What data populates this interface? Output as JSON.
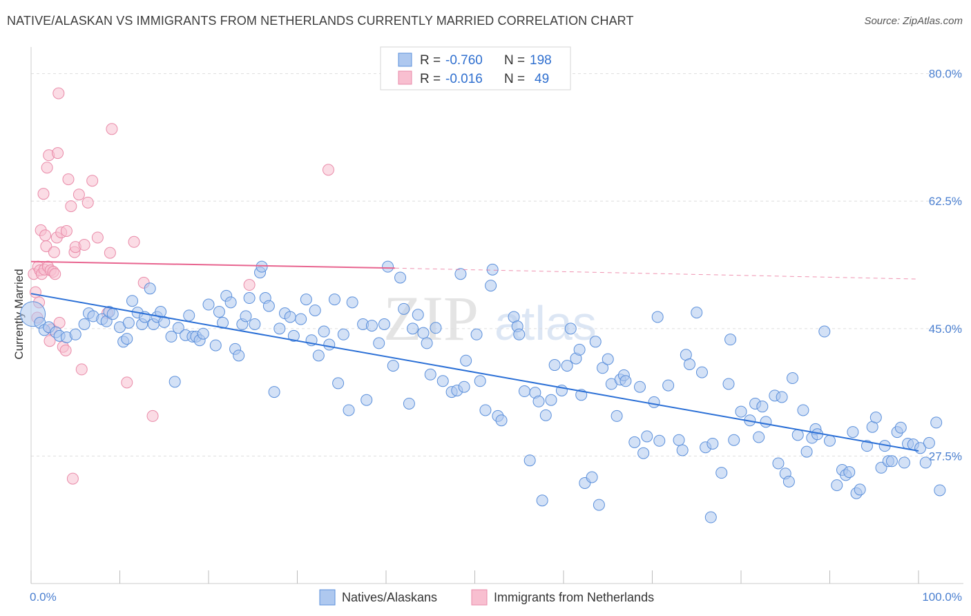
{
  "title": "NATIVE/ALASKAN VS IMMIGRANTS FROM NETHERLANDS CURRENTLY MARRIED CORRELATION CHART",
  "source": "Source: ZipAtlas.com",
  "watermark": {
    "zip": "ZIP",
    "atlas": "atlas"
  },
  "colors": {
    "blue_fill": "#aec8ef",
    "blue_stroke": "#5a8fdb",
    "blue_line": "#2a6fd6",
    "pink_fill": "#f8bfd0",
    "pink_stroke": "#e98aa8",
    "pink_line": "#e8648f",
    "tick_text": "#4a7fd0",
    "grid": "#dddddd"
  },
  "stats": {
    "blue": {
      "r_label": "R =",
      "r_value": "-0.760",
      "n_label": "N =",
      "n_value": "198"
    },
    "pink": {
      "r_label": "R =",
      "r_value": "-0.016",
      "n_label": "N =",
      "n_value": "49"
    }
  },
  "chart_data": {
    "type": "scatter",
    "title": "NATIVE/ALASKAN VS IMMIGRANTS FROM NETHERLANDS CURRENTLY MARRIED CORRELATION CHART",
    "xlabel": "",
    "ylabel": "Currently Married",
    "xlim": [
      0,
      100
    ],
    "ylim": [
      10,
      83
    ],
    "x_tick_labels": [
      "0.0%",
      "100.0%"
    ],
    "y_ticks": [
      27.5,
      45.0,
      62.5,
      80.0
    ],
    "y_tick_labels": [
      "27.5%",
      "45.0%",
      "62.5%",
      "80.0%"
    ],
    "legend": [
      "Natives/Alaskans",
      "Immigrants from Netherlands"
    ],
    "series": [
      {
        "name": "Natives/Alaskans",
        "trend": {
          "x0": 0,
          "y0": 49.8,
          "x1": 100,
          "y1": 28.2
        },
        "points": [
          [
            0.2,
            47.0
          ],
          [
            1,
            45.8
          ],
          [
            1.5,
            44.8
          ],
          [
            2,
            45.2
          ],
          [
            2.8,
            44.5
          ],
          [
            3.2,
            44.0
          ],
          [
            4,
            43.8
          ],
          [
            5,
            44.2
          ],
          [
            6,
            45.6
          ],
          [
            6.5,
            47.1
          ],
          [
            7,
            46.7
          ],
          [
            8,
            46.3
          ],
          [
            8.5,
            46.0
          ],
          [
            8.8,
            47.3
          ],
          [
            9.2,
            47.0
          ],
          [
            10,
            45.2
          ],
          [
            10.4,
            43.2
          ],
          [
            10.8,
            43.6
          ],
          [
            11,
            45.8
          ],
          [
            11.4,
            48.8
          ],
          [
            12,
            47.2
          ],
          [
            12.5,
            45.6
          ],
          [
            12.8,
            46.6
          ],
          [
            13.4,
            50.5
          ],
          [
            13.8,
            45.6
          ],
          [
            14.2,
            46.6
          ],
          [
            14.6,
            47.3
          ],
          [
            15,
            45.9
          ],
          [
            15.8,
            43.9
          ],
          [
            16.2,
            37.7
          ],
          [
            16.6,
            45.1
          ],
          [
            17.4,
            44.1
          ],
          [
            17.8,
            46.8
          ],
          [
            18.2,
            43.9
          ],
          [
            18.6,
            43.9
          ],
          [
            19,
            43.4
          ],
          [
            19.4,
            44.3
          ],
          [
            20,
            48.3
          ],
          [
            20.8,
            42.7
          ],
          [
            21.2,
            47.3
          ],
          [
            21.6,
            45.8
          ],
          [
            22,
            49.5
          ],
          [
            22.5,
            48.6
          ],
          [
            23,
            42.2
          ],
          [
            23.4,
            41.3
          ],
          [
            23.8,
            45.6
          ],
          [
            24.2,
            46.7
          ],
          [
            24.6,
            49.2
          ],
          [
            25.2,
            45.6
          ],
          [
            25.8,
            52.7
          ],
          [
            26,
            53.5
          ],
          [
            26.4,
            49.2
          ],
          [
            26.8,
            48.1
          ],
          [
            27.4,
            36.3
          ],
          [
            28,
            45.0
          ],
          [
            28.6,
            47.1
          ],
          [
            29.2,
            46.6
          ],
          [
            29.6,
            44.0
          ],
          [
            30.4,
            46.3
          ],
          [
            31,
            49.0
          ],
          [
            31.6,
            43.4
          ],
          [
            32,
            47.5
          ],
          [
            32.4,
            41.3
          ],
          [
            33,
            44.6
          ],
          [
            33.6,
            42.8
          ],
          [
            34.2,
            49.0
          ],
          [
            34.6,
            37.5
          ],
          [
            35.2,
            44.2
          ],
          [
            35.8,
            33.8
          ],
          [
            36.2,
            48.6
          ],
          [
            37.4,
            45.6
          ],
          [
            37.8,
            35.2
          ],
          [
            38.4,
            45.4
          ],
          [
            39.2,
            43.0
          ],
          [
            39.8,
            45.6
          ],
          [
            40.2,
            53.5
          ],
          [
            40.8,
            39.9
          ],
          [
            41.6,
            52.0
          ],
          [
            42,
            47.7
          ],
          [
            42.6,
            34.7
          ],
          [
            43,
            45.0
          ],
          [
            43.6,
            46.9
          ],
          [
            44.2,
            44.4
          ],
          [
            44.6,
            43.0
          ],
          [
            45,
            38.7
          ],
          [
            45.6,
            45.1
          ],
          [
            46.4,
            37.8
          ],
          [
            47.4,
            36.3
          ],
          [
            48,
            36.5
          ],
          [
            48.4,
            52.5
          ],
          [
            48.8,
            37.0
          ],
          [
            49,
            40.6
          ],
          [
            50.2,
            44.2
          ],
          [
            50.6,
            37.8
          ],
          [
            51.2,
            33.8
          ],
          [
            51.8,
            50.9
          ],
          [
            52,
            53.1
          ],
          [
            52.6,
            33.0
          ],
          [
            53,
            32.4
          ],
          [
            54.4,
            46.6
          ],
          [
            54.8,
            45.3
          ],
          [
            55,
            44.2
          ],
          [
            55.6,
            36.4
          ],
          [
            56.2,
            26.9
          ],
          [
            56.8,
            36.2
          ],
          [
            57.2,
            35.0
          ],
          [
            57.6,
            21.4
          ],
          [
            58,
            33.1
          ],
          [
            58.6,
            35.2
          ],
          [
            59,
            40.0
          ],
          [
            59.8,
            36.5
          ],
          [
            60.4,
            39.9
          ],
          [
            60.8,
            45.0
          ],
          [
            61.4,
            40.9
          ],
          [
            61.8,
            42.1
          ],
          [
            62,
            35.9
          ],
          [
            62.4,
            23.8
          ],
          [
            63.2,
            24.6
          ],
          [
            63.6,
            43.2
          ],
          [
            64,
            20.8
          ],
          [
            64.4,
            39.6
          ],
          [
            65,
            40.8
          ],
          [
            65.4,
            37.4
          ],
          [
            66,
            33.0
          ],
          [
            66.4,
            38.0
          ],
          [
            66.8,
            38.6
          ],
          [
            67,
            37.8
          ],
          [
            68,
            29.4
          ],
          [
            68.6,
            37.0
          ],
          [
            69,
            27.9
          ],
          [
            69.4,
            30.2
          ],
          [
            70.2,
            34.9
          ],
          [
            70.6,
            46.6
          ],
          [
            70.8,
            29.6
          ],
          [
            71.8,
            37.2
          ],
          [
            73,
            29.7
          ],
          [
            73.4,
            28.3
          ],
          [
            73.8,
            41.4
          ],
          [
            74.2,
            40.1
          ],
          [
            75,
            47.2
          ],
          [
            75.6,
            39.0
          ],
          [
            76,
            28.7
          ],
          [
            76.6,
            19.1
          ],
          [
            76.8,
            29.2
          ],
          [
            77.8,
            25.2
          ],
          [
            78.6,
            37.4
          ],
          [
            78.8,
            43.5
          ],
          [
            79.2,
            29.7
          ],
          [
            80,
            33.6
          ],
          [
            81,
            32.4
          ],
          [
            81.6,
            34.7
          ],
          [
            82,
            30.1
          ],
          [
            82.4,
            34.3
          ],
          [
            82.8,
            32.2
          ],
          [
            83.8,
            35.8
          ],
          [
            84.2,
            26.5
          ],
          [
            84.6,
            35.6
          ],
          [
            85,
            25.1
          ],
          [
            85.4,
            24.0
          ],
          [
            85.8,
            38.2
          ],
          [
            86.4,
            30.4
          ],
          [
            87,
            33.8
          ],
          [
            87.4,
            28.1
          ],
          [
            88,
            30.0
          ],
          [
            88.4,
            31.2
          ],
          [
            88.6,
            30.5
          ],
          [
            89.4,
            44.6
          ],
          [
            90,
            29.6
          ],
          [
            90.8,
            23.5
          ],
          [
            91.4,
            25.6
          ],
          [
            91.8,
            24.9
          ],
          [
            92.2,
            25.3
          ],
          [
            92.6,
            30.8
          ],
          [
            93,
            22.4
          ],
          [
            93.4,
            22.9
          ],
          [
            94.2,
            28.9
          ],
          [
            94.8,
            31.5
          ],
          [
            95.2,
            32.8
          ],
          [
            95.8,
            25.9
          ],
          [
            96.2,
            28.9
          ],
          [
            96.6,
            26.8
          ],
          [
            97,
            26.8
          ],
          [
            97.6,
            30.8
          ],
          [
            98,
            31.4
          ],
          [
            98.4,
            26.6
          ],
          [
            98.8,
            29.2
          ],
          [
            99.4,
            29.1
          ],
          [
            100.2,
            28.6
          ],
          [
            100.8,
            26.6
          ],
          [
            101.2,
            29.3
          ],
          [
            102,
            32.1
          ],
          [
            102.4,
            22.8
          ]
        ]
      },
      {
        "name": "Immigrants from Netherlands",
        "trend": {
          "x0": 0,
          "y0": 54.2,
          "x1": 41,
          "y1": 53.3,
          "dashed_to_x": 100,
          "dashed_to_y": 51.8
        },
        "points": [
          [
            0.3,
            52.5
          ],
          [
            0.5,
            50.0
          ],
          [
            0.7,
            46.5
          ],
          [
            0.8,
            53.5
          ],
          [
            0.9,
            48.6
          ],
          [
            1,
            53.0
          ],
          [
            1.1,
            58.5
          ],
          [
            1.2,
            52.5
          ],
          [
            1.4,
            63.5
          ],
          [
            1.5,
            53.1
          ],
          [
            1.6,
            57.8
          ],
          [
            1.7,
            56.3
          ],
          [
            1.8,
            67.1
          ],
          [
            1.9,
            53.5
          ],
          [
            2,
            68.8
          ],
          [
            2.1,
            43.3
          ],
          [
            2.2,
            53.0
          ],
          [
            2.3,
            44.9
          ],
          [
            2.5,
            52.8
          ],
          [
            2.6,
            55.5
          ],
          [
            2.7,
            52.5
          ],
          [
            2.9,
            57.5
          ],
          [
            3,
            69.1
          ],
          [
            3.1,
            77.3
          ],
          [
            3.2,
            45.8
          ],
          [
            3.4,
            58.2
          ],
          [
            3.6,
            42.5
          ],
          [
            3.9,
            42.0
          ],
          [
            4,
            58.4
          ],
          [
            4.2,
            65.5
          ],
          [
            4.5,
            61.8
          ],
          [
            4.7,
            24.4
          ],
          [
            4.9,
            55.5
          ],
          [
            5,
            56.2
          ],
          [
            5.4,
            63.4
          ],
          [
            5.7,
            39.4
          ],
          [
            6,
            56.5
          ],
          [
            6.4,
            62.3
          ],
          [
            6.9,
            65.3
          ],
          [
            7.5,
            57.5
          ],
          [
            8.6,
            47.1
          ],
          [
            8.9,
            55.4
          ],
          [
            9.1,
            72.4
          ],
          [
            10.8,
            37.6
          ],
          [
            11.6,
            56.9
          ],
          [
            12.7,
            51.3
          ],
          [
            13.7,
            33.0
          ],
          [
            24.6,
            51.0
          ],
          [
            33.5,
            66.8
          ]
        ]
      }
    ]
  },
  "legend_items": [
    {
      "label": "Natives/Alaskans"
    },
    {
      "label": "Immigrants from Netherlands"
    }
  ]
}
